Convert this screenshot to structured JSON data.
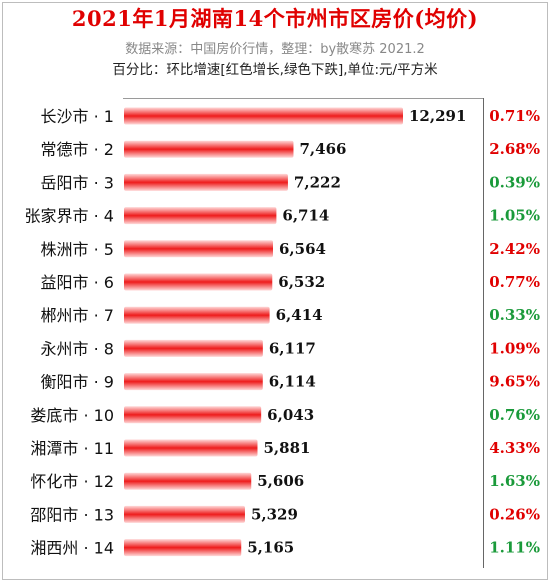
{
  "header": {
    "title": "2021年1月湖南14个市州市区房价(均价)",
    "source": "数据来源：中国房价行情，整理：by散寒苏 2021.2",
    "note": "百分比：环比增速[红色增长,绿色下跌],单位:元/平方米"
  },
  "colors": {
    "title": "#e00000",
    "bar": "#ee1c1c",
    "increase": "#e00000",
    "decrease": "#1a9a3a"
  },
  "chart_data": {
    "type": "bar",
    "orientation": "horizontal",
    "categories": [
      "长沙市 · 1",
      "常德市 · 2",
      "岳阳市 · 3",
      "张家界市 · 4",
      "株洲市 · 5",
      "益阳市 · 6",
      "郴州市 · 7",
      "永州市 · 8",
      "衡阳市 · 9",
      "娄底市 · 10",
      "湘潭市 · 11",
      "怀化市 · 12",
      "邵阳市 · 13",
      "湘西州 · 14"
    ],
    "values": [
      12291,
      7466,
      7222,
      6714,
      6564,
      6532,
      6414,
      6117,
      6114,
      6043,
      5881,
      5606,
      5329,
      5165
    ],
    "value_labels": [
      "12,291",
      "7,466",
      "7,222",
      "6,714",
      "6,564",
      "6,532",
      "6,414",
      "6,117",
      "6,114",
      "6,043",
      "5,881",
      "5,606",
      "5,329",
      "5,165"
    ],
    "change_labels": [
      "0.71%",
      "2.68%",
      "0.39%",
      "1.05%",
      "2.42%",
      "0.77%",
      "0.33%",
      "1.09%",
      "9.65%",
      "0.76%",
      "4.33%",
      "1.63%",
      "0.26%",
      "1.11%"
    ],
    "change_direction": [
      "up",
      "up",
      "down",
      "down",
      "up",
      "up",
      "down",
      "up",
      "up",
      "down",
      "up",
      "down",
      "up",
      "down"
    ],
    "xlim": [
      0,
      12291
    ],
    "grid": false,
    "legend": "none"
  }
}
